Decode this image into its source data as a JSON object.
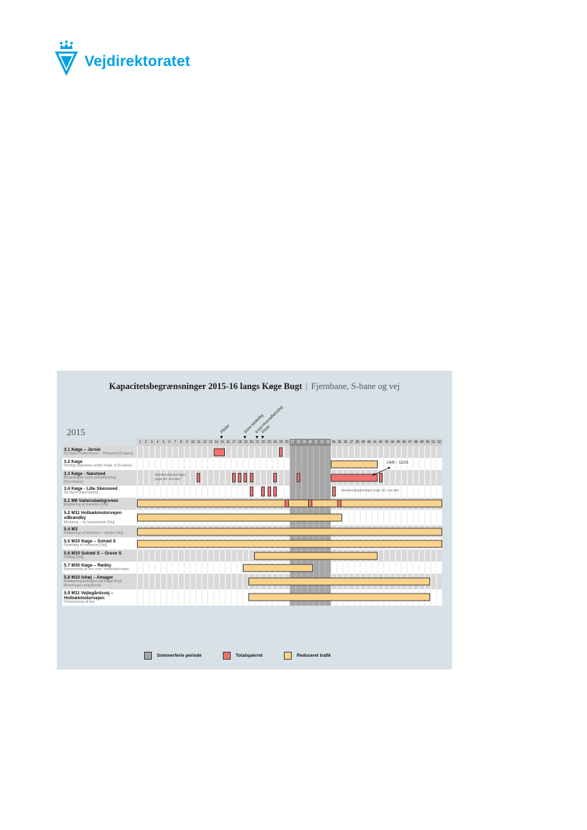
{
  "logo": {
    "brand": "Vejdirektoratet",
    "brand_color": "#00a1e1",
    "icon": "crown-triangle-logo-icon"
  },
  "chart_data": {
    "type": "gantt",
    "title_main": "Kapacitetsbegrænsninger 2015-16 langs Køge Bugt",
    "title_divider": "|",
    "title_sub": "Fjernbane, S-bane og vej",
    "year_label": "2015",
    "x_axis": {
      "unit": "uge",
      "week_ticks": [
        1,
        2,
        3,
        4,
        5,
        6,
        7,
        8,
        9,
        10,
        11,
        12,
        13,
        14,
        15,
        16,
        17,
        18,
        19,
        20,
        21,
        22,
        23,
        24,
        25,
        26,
        27,
        28,
        29,
        30,
        31,
        32,
        33,
        34,
        35,
        36,
        37,
        38,
        39,
        40,
        41,
        42,
        43,
        44,
        45,
        46,
        47,
        48,
        49,
        50,
        51,
        52
      ]
    },
    "summer_period_weeks": {
      "from": 27,
      "to": 33
    },
    "holiday_markers": [
      {
        "label": "Påske",
        "week": 14
      },
      {
        "label": "Store bededag",
        "week": 18
      },
      {
        "label": "Kristi Himmelfartsdag",
        "week": 20
      },
      {
        "label": "Pinse",
        "week": 21
      }
    ],
    "rows": [
      {
        "title": "3.1 Køge – Jersie",
        "subtitle": "Ny Bane København – Ringsted [S-bane]",
        "bars": [
          {
            "style": "closed",
            "from": 14,
            "to": 15
          },
          {
            "style": "closed",
            "from": 25,
            "to": 25,
            "narrow": true
          }
        ]
      },
      {
        "title": "3.2 Køge",
        "subtitle": "Nordlig vejtunnel under Køge st [S-bane]",
        "bars": [
          {
            "style": "reduced",
            "from": 34,
            "to": 41
          }
        ]
      },
      {
        "title": "3.3 Køge - Næstved",
        "subtitle": "Broarbejder samt elektrificering [Fjernbane]",
        "note_left": {
          "lines": [
            "Weekendspærringer",
            "(Uge 20: ons-lør)"
          ]
        },
        "callout": {
          "text": "14/8 – 11/10",
          "points_to_week": 41
        },
        "bars": [
          {
            "style": "closed",
            "from": 11,
            "to": 11,
            "narrow": true
          },
          {
            "style": "closed",
            "from": 17,
            "to": 17,
            "narrow": true
          },
          {
            "style": "closed",
            "from": 18,
            "to": 18,
            "narrow": true
          },
          {
            "style": "closed",
            "from": 19,
            "to": 19,
            "narrow": true
          },
          {
            "style": "closed",
            "from": 20,
            "to": 20,
            "narrow": true
          },
          {
            "style": "closed",
            "from": 24,
            "to": 24,
            "narrow": true
          },
          {
            "style": "closed",
            "from": 28,
            "to": 28,
            "narrow": true
          },
          {
            "style": "closed",
            "from": 34,
            "to": 41
          },
          {
            "style": "closed",
            "from": 42,
            "to": 42,
            "narrow": true
          }
        ]
      },
      {
        "title": "3.4 Køge - Lille Skensved",
        "subtitle": "Ny bane [Fjernbane]",
        "note_right": {
          "text": "Weekendspærringer (Uge 20: ons-lør)"
        },
        "bars": [
          {
            "style": "closed",
            "from": 20,
            "to": 20,
            "narrow": true
          },
          {
            "style": "closed",
            "from": 22,
            "to": 22,
            "narrow": true
          },
          {
            "style": "closed",
            "from": 23,
            "to": 23,
            "narrow": true
          },
          {
            "style": "closed",
            "from": 24,
            "to": 24,
            "narrow": true
          },
          {
            "style": "closed",
            "from": 34,
            "to": 34,
            "narrow": true
          }
        ]
      },
      {
        "title": "5.1 M6 Vallensbækgrenen",
        "subtitle": "Etablering af banebro [Vej]",
        "bars": [
          {
            "style": "reduced",
            "from": 1,
            "to": 52
          },
          {
            "style": "closed",
            "from": 26,
            "to": 26,
            "mark": true
          },
          {
            "style": "closed",
            "from": 30,
            "to": 30,
            "mark": true
          },
          {
            "style": "closed",
            "from": 35,
            "to": 35,
            "mark": true
          }
        ]
      },
      {
        "title": "5.2 M11 Holbækmotorvejen v/Brøndby",
        "subtitle": "Motorvej – ny banetunnel [Vej]",
        "bars": [
          {
            "style": "reduced",
            "from": 1,
            "to": 35
          }
        ]
      },
      {
        "title": "5.4 M3",
        "subtitle": "Etablering af banebro + rampe [Vej]",
        "bars": [
          {
            "style": "reduced",
            "from": 1,
            "to": 52
          }
        ]
      },
      {
        "title": "5.5 M10 Køge – Solrød S",
        "subtitle": "Nyanlæg af motorvej [Vej]",
        "bars": [
          {
            "style": "reduced",
            "from": 1,
            "to": 52
          }
        ]
      },
      {
        "title": "5.6 M10 Solrød S – Greve S",
        "subtitle": "Slidlag [Vej]",
        "bars": [
          {
            "style": "reduced",
            "from": 21,
            "to": 41
          }
        ]
      },
      {
        "title": "5.7 M30 Køge – Rødby",
        "subtitle": "Renovering af bro over Vestmotorvejen",
        "bars": [
          {
            "style": "reduced",
            "from": 19,
            "to": 30
          }
        ]
      },
      {
        "title": "5.8 M10 Ishøj – Amager",
        "subtitle": "Belægningsarbejder på Køge Bugt Motorvejen østgående",
        "bars": [
          {
            "style": "reduced",
            "from": 20,
            "to": 50
          }
        ]
      },
      {
        "title": "5.9 M11 Vejlegårdsvej – Holbækmotorvejen",
        "subtitle": "Omisolering af bro",
        "bars": [
          {
            "style": "reduced",
            "from": 20,
            "to": 50
          }
        ]
      }
    ],
    "legend": [
      {
        "label": "Sommerferie periode",
        "color": "#a6a6a6"
      },
      {
        "label": "Totalspærret",
        "color": "#f0716d"
      },
      {
        "label": "Reduceret trafik",
        "color": "#fbd28c"
      }
    ],
    "colors": {
      "closed": "#f0716d",
      "reduced": "#fbd28c",
      "summer_band": "#a7a7a7",
      "row_stripe": "#d9d9d9",
      "panel_background": "#d8e1e6"
    }
  }
}
